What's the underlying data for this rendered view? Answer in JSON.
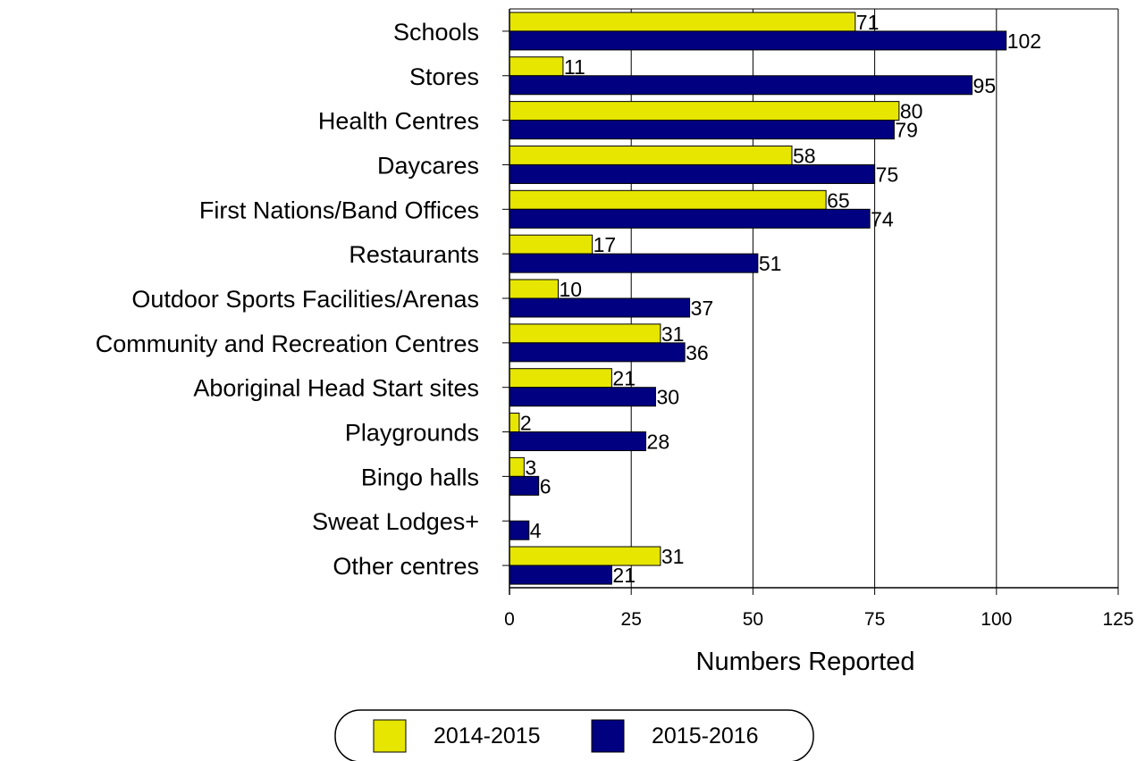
{
  "chart_data": {
    "type": "bar",
    "orientation": "horizontal",
    "title": "",
    "xlabel": "Numbers Reported",
    "ylabel": "",
    "xlim": [
      0,
      125
    ],
    "x_ticks": [
      0,
      25,
      50,
      75,
      100,
      125
    ],
    "grid": "vertical",
    "legend_position": "bottom",
    "categories": [
      "Schools",
      "Stores",
      "Health Centres",
      "Daycares",
      "First Nations/Band Offices",
      "Restaurants",
      "Outdoor Sports Facilities/Arenas",
      "Community and Recreation Centres",
      "Aboriginal Head Start sites",
      "Playgrounds",
      "Bingo halls",
      "Sweat Lodges+",
      "Other centres"
    ],
    "series": [
      {
        "name": "2014-2015",
        "color": "#e6e600",
        "values": [
          71,
          11,
          80,
          58,
          65,
          17,
          10,
          31,
          21,
          2,
          3,
          null,
          31
        ]
      },
      {
        "name": "2015-2016",
        "color": "#000080",
        "values": [
          102,
          95,
          79,
          75,
          74,
          51,
          37,
          36,
          30,
          28,
          6,
          4,
          21
        ]
      }
    ]
  }
}
